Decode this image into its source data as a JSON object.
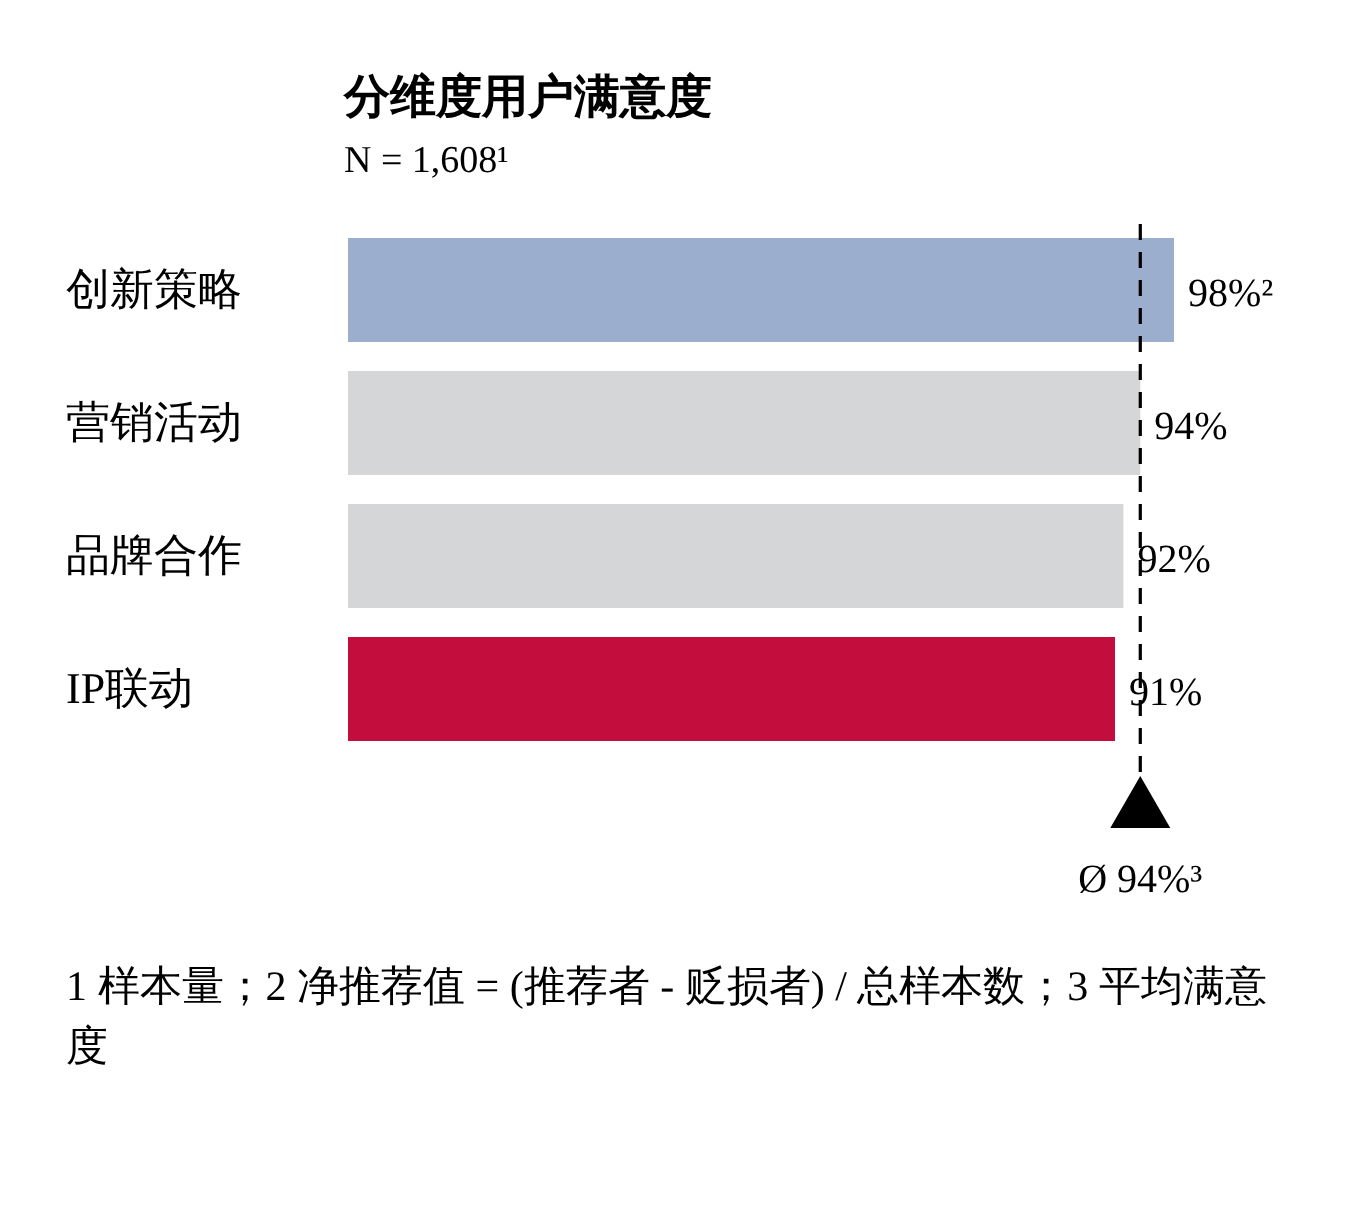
{
  "chart_data": {
    "type": "bar",
    "orientation": "horizontal",
    "title": "分维度用户满意度",
    "subtitle": "N = 1,608¹",
    "categories": [
      "创新策略",
      "营销活动",
      "品牌合作",
      "IP联动"
    ],
    "values": [
      98,
      94,
      92,
      91
    ],
    "colors": [
      "#9baece",
      "#d5d6d8",
      "#d5d6d8",
      "#c30d3c"
    ],
    "value_labels": [
      "98%²",
      "94%",
      "92%",
      "91%"
    ],
    "ref_lines": [
      {
        "axis": "x",
        "value": 94,
        "label": "Ø 94%³",
        "line_style": "dashed",
        "color": "#000000"
      }
    ],
    "annotations": [
      "1 样本量；2 净推荐值 = (推荐者 - 贬损者) / 总样本数；3 平均满意度"
    ]
  }
}
